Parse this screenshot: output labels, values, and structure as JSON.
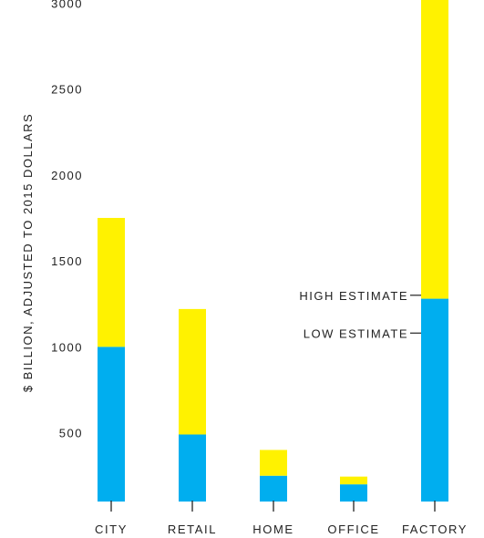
{
  "chart_data": {
    "type": "bar",
    "stacked": true,
    "categories": [
      "CITY",
      "RETAIL",
      "HOME",
      "OFFICE",
      "FACTORY"
    ],
    "series": [
      {
        "values": [
          900,
          390,
          150,
          100,
          1180
        ],
        "color": "#00aeef"
      },
      {
        "values": [
          750,
          730,
          150,
          45,
          1950
        ],
        "color": "#fff200"
      }
    ],
    "ylabel": "$ BILLION, ADJUSTED TO 2015 DOLLARS",
    "yticks": [
      500,
      1000,
      1500,
      2000,
      2500,
      3000
    ],
    "ylim": [
      100,
      3100
    ],
    "annotations": [
      {
        "text": "HIGH ESTIMATE",
        "category": "FACTORY",
        "value": 1300
      },
      {
        "text": "LOW ESTIMATE",
        "category": "FACTORY",
        "value": 1080
      }
    ],
    "grid": false,
    "legend": "none"
  }
}
